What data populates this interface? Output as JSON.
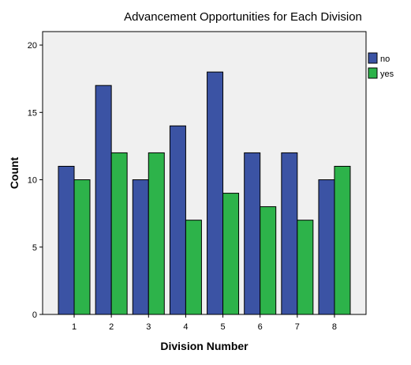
{
  "chart_data": {
    "type": "bar",
    "title": "Advancement Opportunities for Each Division",
    "xlabel": "Division Number",
    "ylabel": "Count",
    "categories": [
      "1",
      "2",
      "3",
      "4",
      "5",
      "6",
      "7",
      "8"
    ],
    "series": [
      {
        "name": "no",
        "color": "#3b53a4",
        "values": [
          11,
          17,
          10,
          14,
          18,
          12,
          12,
          10
        ]
      },
      {
        "name": "yes",
        "color": "#2db34a",
        "values": [
          10,
          12,
          12,
          7,
          9,
          8,
          7,
          11
        ]
      }
    ],
    "ylim": [
      0,
      21
    ],
    "yticks": [
      0,
      5,
      10,
      15,
      20
    ],
    "grid": false,
    "legend_position": "right",
    "plot_background": "#f0f0f0"
  }
}
